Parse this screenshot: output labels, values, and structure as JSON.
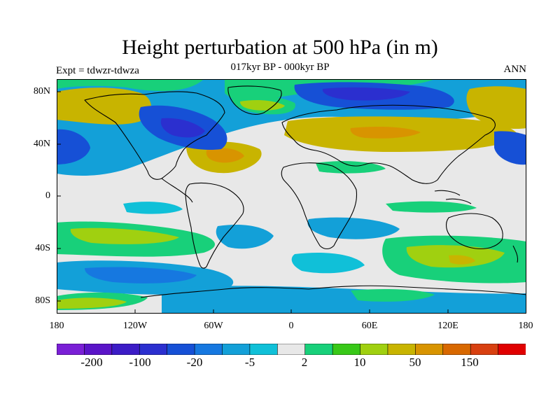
{
  "title": "Height perturbation at 500 hPa (in m)",
  "subtitle": "017kyr BP - 000kyr BP",
  "left_label": "Expt = tdwzr-tdwza",
  "right_label": "ANN",
  "lat_labels": [
    "80N",
    "40N",
    "0",
    "40S",
    "80S"
  ],
  "lon_labels": [
    "180",
    "120W",
    "60W",
    "0",
    "60E",
    "120E",
    "180"
  ],
  "colorbar": {
    "colors": [
      "#7a1fd6",
      "#5a14c8",
      "#3c1cc6",
      "#2b2fcf",
      "#1650d6",
      "#1678e0",
      "#13a0d8",
      "#10c0d8",
      "#e8e8e8",
      "#18d07a",
      "#38c818",
      "#a0d010",
      "#c8b400",
      "#d89400",
      "#d86800",
      "#d84010",
      "#e00000"
    ],
    "labels": [
      "-200",
      "-100",
      "-20",
      "-5",
      "2",
      "10",
      "50",
      "150"
    ]
  },
  "colors": {
    "background": "#e8e8e8",
    "strong_negative": "#1650d6",
    "moderate_negative": "#13a0d8",
    "weak_negative": "#10c0d8",
    "weak_positive": "#18d07a",
    "positive": "#38c818",
    "strong_positive": "#c8b400"
  }
}
